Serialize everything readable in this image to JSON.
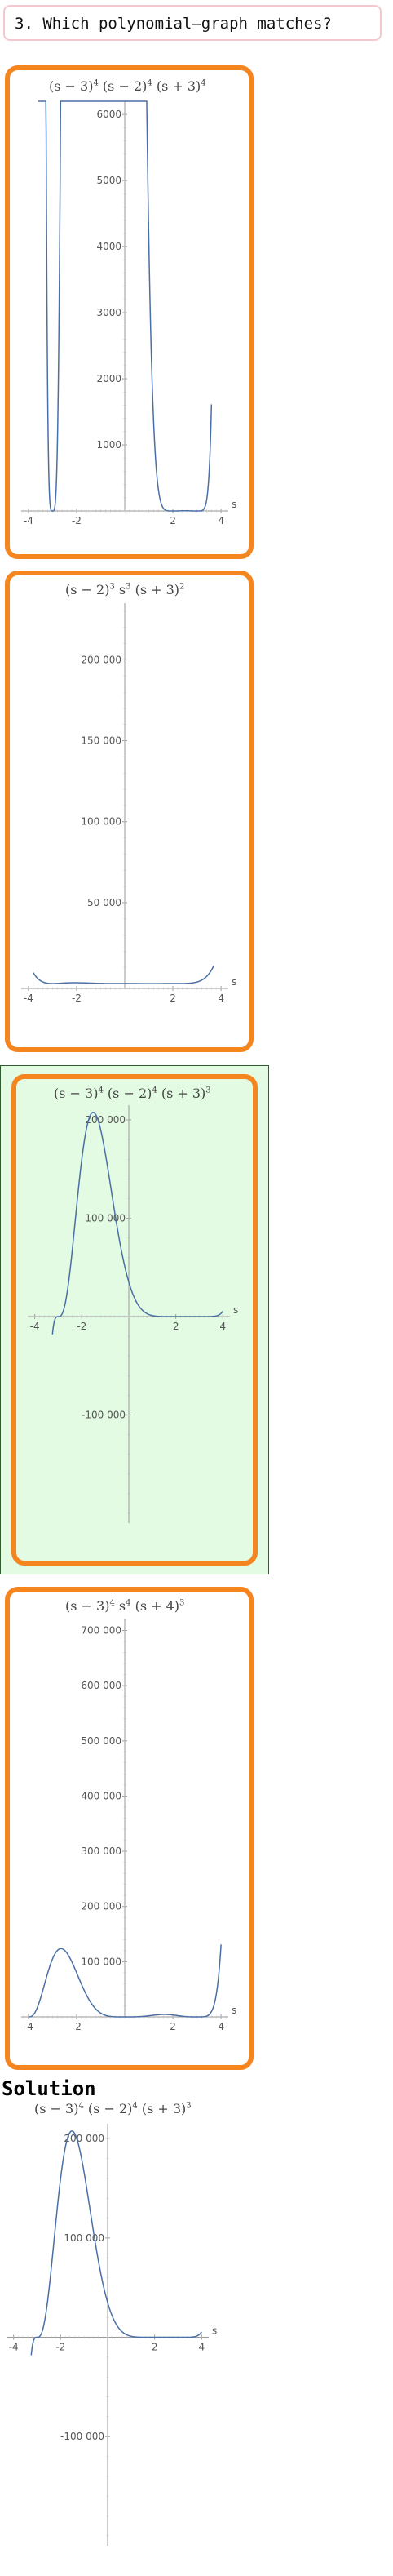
{
  "question": {
    "title": "3. Which polynomial–graph matches?"
  },
  "options": [
    {
      "formula": "(s − 3)<sup>4</sup> (s − 2)<sup>4</sup> (s + 3)<sup>4</sup>",
      "correct": false
    },
    {
      "formula": "(s − 2)<sup>3</sup> s<sup>3</sup> (s + 3)<sup>2</sup>",
      "correct": false
    },
    {
      "formula": "(s − 3)<sup>4</sup> (s − 2)<sup>4</sup> (s + 3)<sup>3</sup>",
      "correct": true
    },
    {
      "formula": "(s − 3)<sup>4</sup> s<sup>4</sup> (s + 4)<sup>3</sup>",
      "correct": false
    }
  ],
  "solution": {
    "label": "Solution",
    "formula": "(s − 3)<sup>4</sup> (s − 2)<sup>4</sup> (s + 3)<sup>3</sup>"
  },
  "chart_data": [
    {
      "type": "line",
      "x_label": "s",
      "xlim": [
        -4.3,
        4.3
      ],
      "ylim": [
        0,
        6200
      ],
      "x_ticks": [
        "-4",
        "-2",
        "2",
        "4"
      ],
      "y_ticks": [
        "1000",
        "2000",
        "3000",
        "4000",
        "5000",
        "6000"
      ],
      "x_tick_values": [
        -4,
        -2,
        2,
        4
      ],
      "y_tick_values": [
        1000,
        2000,
        3000,
        4000,
        5000,
        6000
      ],
      "function": "(s-3)^4 (s-2)^4 (s+3)^4",
      "color": "#4a6fa5"
    },
    {
      "type": "line",
      "x_label": "s",
      "xlim": [
        -4.3,
        4.3
      ],
      "ylim": [
        -3000,
        235000
      ],
      "x_ticks": [
        "-4",
        "-2",
        "2",
        "4"
      ],
      "y_ticks": [
        "50 000",
        "100 000",
        "150 000",
        "200 000"
      ],
      "x_tick_values": [
        -4,
        -2,
        2,
        4
      ],
      "y_tick_values": [
        50000,
        100000,
        150000,
        200000
      ],
      "function": "(s-2)^3 s^3 (s+3)^2",
      "color": "#4a6fa5"
    },
    {
      "type": "line",
      "x_label": "s",
      "xlim": [
        -4.3,
        4.3
      ],
      "ylim": [
        -210000,
        215000
      ],
      "x_ticks": [
        "-4",
        "-2",
        "2",
        "4"
      ],
      "y_ticks": [
        "-100 000",
        "100 000",
        "200 000"
      ],
      "x_tick_values": [
        -4,
        -2,
        2,
        4
      ],
      "y_tick_values": [
        -100000,
        100000,
        200000
      ],
      "function": "(s-3)^4 (s-2)^4 (s+3)^3",
      "color": "#4a6fa5"
    },
    {
      "type": "line",
      "x_label": "s",
      "xlim": [
        -4.3,
        4.3
      ],
      "ylim": [
        0,
        720000
      ],
      "x_ticks": [
        "-4",
        "-2",
        "2",
        "4"
      ],
      "y_ticks": [
        "100 000",
        "200 000",
        "300 000",
        "400 000",
        "500 000",
        "600 000",
        "700 000"
      ],
      "x_tick_values": [
        -4,
        -2,
        2,
        4
      ],
      "y_tick_values": [
        100000,
        200000,
        300000,
        400000,
        500000,
        600000,
        700000
      ],
      "function": "(s-3)^4 s^4 (s+4)^3",
      "color": "#4a6fa5"
    },
    {
      "type": "line",
      "x_label": "s",
      "xlim": [
        -4.3,
        4.3
      ],
      "ylim": [
        -210000,
        215000
      ],
      "x_ticks": [
        "-4",
        "-2",
        "2",
        "4"
      ],
      "y_ticks": [
        "-100 000",
        "100 000",
        "200 000"
      ],
      "x_tick_values": [
        -4,
        -2,
        2,
        4
      ],
      "y_tick_values": [
        -100000,
        100000,
        200000
      ],
      "function": "(s-3)^4 (s-2)^4 (s+3)^3",
      "color": "#4a6fa5"
    }
  ]
}
